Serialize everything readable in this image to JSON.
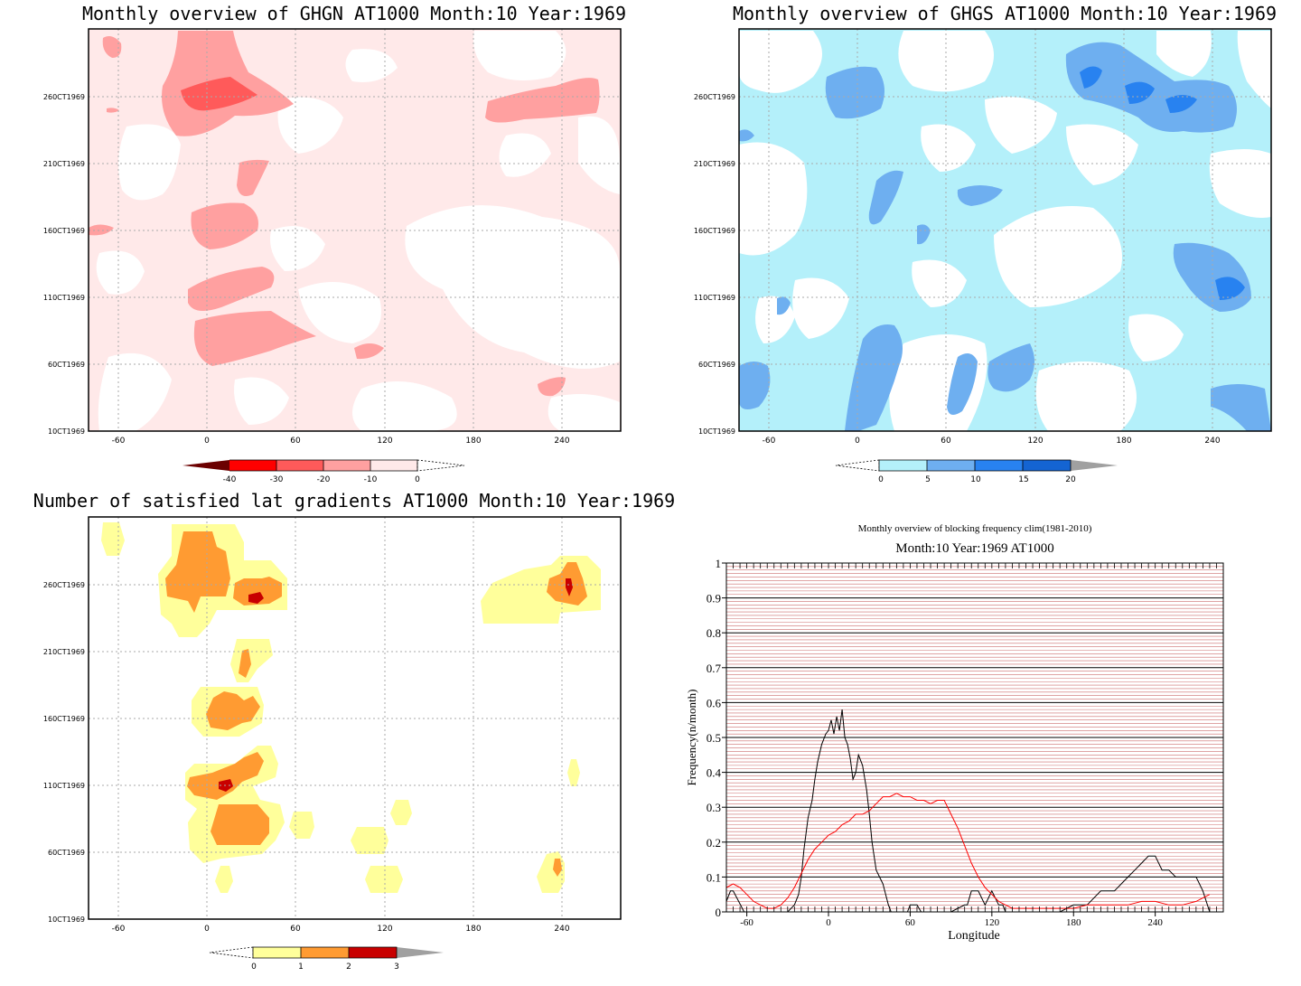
{
  "panels": {
    "ghgn": {
      "title": "Monthly overview of GHGN AT1000 Month:10 Year:1969",
      "yticks": [
        "10CT1969",
        "60CT1969",
        "110CT1969",
        "160CT1969",
        "210CT1969",
        "260CT1969"
      ],
      "xticks": [
        "-60",
        "0",
        "60",
        "120",
        "180",
        "240"
      ],
      "colorbar": {
        "labels": [
          "-40",
          "-30",
          "-20",
          "-10",
          "0"
        ],
        "colors": [
          "#6b0000",
          "#ff0000",
          "#ff5a5a",
          "#ffa0a0",
          "#ffe9e9",
          "#ffffff"
        ]
      }
    },
    "ghgs": {
      "title": "Monthly overview of GHGS AT1000 Month:10 Year:1969",
      "yticks": [
        "10CT1969",
        "60CT1969",
        "110CT1969",
        "160CT1969",
        "210CT1969",
        "260CT1969"
      ],
      "xticks": [
        "-60",
        "0",
        "60",
        "120",
        "180",
        "240"
      ],
      "colorbar": {
        "labels": [
          "0",
          "5",
          "10",
          "15",
          "20"
        ],
        "colors": [
          "#ffffff",
          "#b4f0fa",
          "#6eaff0",
          "#2882f0",
          "#1464d2",
          "#a0a0a0"
        ]
      }
    },
    "grad": {
      "title": "Number of satisfied lat gradients AT1000 Month:10 Year:1969",
      "yticks": [
        "10CT1969",
        "60CT1969",
        "110CT1969",
        "160CT1969",
        "210CT1969",
        "260CT1969"
      ],
      "xticks": [
        "-60",
        "0",
        "60",
        "120",
        "180",
        "240"
      ],
      "colorbar": {
        "labels": [
          "0",
          "1",
          "2",
          "3"
        ],
        "colors": [
          "#ffffff",
          "#ffff9b",
          "#ff9b32",
          "#c80000",
          "#a0a0a0"
        ]
      }
    }
  },
  "chart_data": [
    {
      "type": "heatmap",
      "title": "Monthly overview of GHGN AT1000 Month:10 Year:1969",
      "xlim": [
        -80,
        280
      ],
      "colorbar_levels": [
        -40,
        -30,
        -20,
        -10,
        0
      ]
    },
    {
      "type": "heatmap",
      "title": "Monthly overview of GHGS AT1000 Month:10 Year:1969",
      "xlim": [
        -80,
        280
      ],
      "colorbar_levels": [
        0,
        5,
        10,
        15,
        20
      ]
    },
    {
      "type": "heatmap",
      "title": "Number of satisfied lat gradients AT1000 Month:10 Year:1969",
      "xlim": [
        -80,
        280
      ],
      "colorbar_levels": [
        0,
        1,
        2,
        3
      ]
    },
    {
      "type": "line",
      "title": "Monthly overview of blocking frequency clim(1981-2010)",
      "subtitle": "Month:10 Year:1969  AT1000",
      "xlabel": "Longitude",
      "ylabel": "Frequency(n/month)",
      "xlim": [
        -75,
        290
      ],
      "ylim": [
        0,
        1
      ],
      "xticks": [
        "-60",
        "0",
        "60",
        "120",
        "180",
        "240"
      ],
      "yticks": [
        "0",
        "0.1",
        "0.2",
        "0.3",
        "0.4",
        "0.5",
        "0.6",
        "0.7",
        "0.8",
        "0.9",
        "1"
      ],
      "series": [
        {
          "color": "#000000",
          "x": [
            -78,
            -72,
            -70,
            -66,
            -62,
            -60,
            -50,
            -40,
            -30,
            -25,
            -22,
            -20,
            -18,
            -15,
            -12,
            -10,
            -8,
            -5,
            -2,
            0,
            2,
            4,
            6,
            8,
            10,
            12,
            14,
            16,
            18,
            20,
            22,
            25,
            28,
            30,
            32,
            35,
            40,
            42,
            44,
            46,
            48,
            50,
            52,
            55,
            58,
            60,
            62,
            65,
            68,
            70,
            80,
            90,
            100,
            102,
            105,
            110,
            115,
            120,
            125,
            128,
            130,
            140,
            150,
            160,
            170,
            180,
            190,
            200,
            210,
            215,
            220,
            225,
            230,
            235,
            240,
            245,
            250,
            255,
            260,
            265,
            270,
            275,
            280
          ],
          "y": [
            0,
            0.06,
            0.06,
            0.03,
            0,
            0,
            0,
            0,
            0,
            0.02,
            0.05,
            0.1,
            0.18,
            0.27,
            0.32,
            0.38,
            0.43,
            0.48,
            0.51,
            0.52,
            0.55,
            0.51,
            0.56,
            0.52,
            0.58,
            0.5,
            0.48,
            0.44,
            0.38,
            0.4,
            0.45,
            0.42,
            0.35,
            0.28,
            0.2,
            0.12,
            0.08,
            0.05,
            0.02,
            0,
            0,
            0,
            0,
            0,
            0,
            0.02,
            0.02,
            0.02,
            0,
            0,
            0,
            0,
            0.02,
            0.02,
            0.06,
            0.06,
            0.02,
            0.06,
            0.02,
            0.02,
            0,
            0,
            0,
            0,
            0,
            0.02,
            0.02,
            0.06,
            0.06,
            0.08,
            0.1,
            0.12,
            0.14,
            0.16,
            0.16,
            0.12,
            0.12,
            0.1,
            0.1,
            0.1,
            0.1,
            0.06,
            0
          ]
        },
        {
          "color": "#ff0000",
          "x": [
            -80,
            -75,
            -70,
            -65,
            -60,
            -55,
            -50,
            -45,
            -40,
            -35,
            -30,
            -25,
            -20,
            -15,
            -10,
            -5,
            0,
            5,
            10,
            15,
            20,
            25,
            30,
            35,
            40,
            45,
            50,
            55,
            60,
            65,
            70,
            75,
            80,
            85,
            90,
            95,
            100,
            105,
            110,
            115,
            120,
            125,
            130,
            135,
            140,
            145,
            150,
            160,
            170,
            180,
            190,
            200,
            210,
            220,
            230,
            240,
            250,
            260,
            270,
            280
          ],
          "y": [
            0.06,
            0.07,
            0.08,
            0.07,
            0.05,
            0.03,
            0.02,
            0.01,
            0.01,
            0.02,
            0.04,
            0.07,
            0.11,
            0.15,
            0.18,
            0.2,
            0.22,
            0.23,
            0.25,
            0.26,
            0.28,
            0.28,
            0.29,
            0.31,
            0.33,
            0.33,
            0.34,
            0.33,
            0.33,
            0.32,
            0.32,
            0.31,
            0.32,
            0.32,
            0.28,
            0.24,
            0.19,
            0.14,
            0.1,
            0.07,
            0.05,
            0.03,
            0.02,
            0.01,
            0.01,
            0.01,
            0.01,
            0.01,
            0.01,
            0.01,
            0.02,
            0.02,
            0.02,
            0.02,
            0.03,
            0.03,
            0.02,
            0.02,
            0.03,
            0.05
          ]
        }
      ]
    }
  ]
}
